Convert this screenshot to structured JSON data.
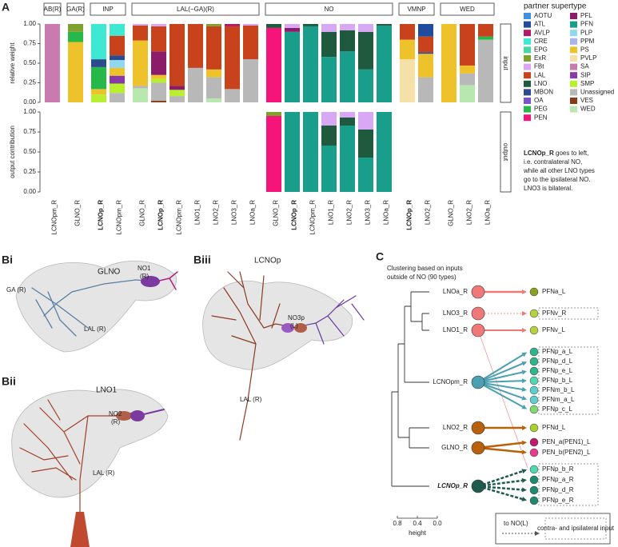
{
  "chart_data": [
    {
      "type": "bar",
      "stacked": true,
      "ylabel": "relative weight",
      "side_label": "input",
      "ylim": [
        0,
        1
      ],
      "yticks": [
        {
          "value": 0,
          "label": "0.00"
        },
        {
          "value": 0.25,
          "label": "0.25"
        },
        {
          "value": 0.5,
          "label": "0.50"
        },
        {
          "value": 0.75,
          "label": "0.75"
        },
        {
          "value": 1,
          "label": "1.00"
        }
      ],
      "groups": [
        {
          "label": "AB(R)",
          "count": 1
        },
        {
          "label": "GA(R)",
          "count": 1
        },
        {
          "label": "INP",
          "count": 2
        },
        {
          "label": "LAL(−GA)(R)",
          "count": 7
        },
        {
          "label": "NO",
          "count": 7
        },
        {
          "label": "VMNP",
          "count": 2
        },
        {
          "label": "WED",
          "count": 3
        }
      ],
      "categories": [
        "LCNOpm_R",
        "GLNO_R",
        "LCNOp_R",
        "LCNOpm_R",
        "GLNO_R",
        "LCNOp_R",
        "LCNOpm_R",
        "LNO1_R",
        "LNO2_R",
        "LNO3_R",
        "LNOa_R",
        "GLNO_R",
        "LCNOp_R",
        "LCNOpm_R",
        "LNO1_R",
        "LNO2_R",
        "LNO3_R",
        "LNOa_R",
        "LCNOp_R",
        "LNO2_R",
        "GLNO_R",
        "LNO2_R",
        "LNOa_R"
      ],
      "legend_title": "partner supertype",
      "note": {
        "bold": "LCNOp_R",
        "lines": [
          " goes to left,",
          "i.e. contralateral NO,",
          "while all other LNO types",
          "go to the ipsilateral NO.",
          "LNO3 is bilateral."
        ]
      },
      "series": [
        {
          "name": "AOTU",
          "color": "#3f8fe3",
          "values": [
            0,
            0,
            0,
            0,
            0,
            0,
            0,
            0,
            0,
            0,
            0,
            0,
            0,
            0,
            0,
            0,
            0,
            0,
            0,
            0,
            0,
            0,
            0
          ]
        },
        {
          "name": "ATL",
          "color": "#1f4c9e",
          "values": [
            0,
            0,
            0,
            0,
            0,
            0,
            0,
            0,
            0,
            0,
            0,
            0,
            0,
            0,
            0,
            0,
            0,
            0,
            0,
            0.16,
            0,
            0,
            0
          ]
        },
        {
          "name": "AVLP",
          "color": "#b0186a",
          "values": [
            0,
            0,
            0,
            0,
            0,
            0,
            0,
            0,
            0,
            0.03,
            0,
            0,
            0,
            0,
            0,
            0,
            0,
            0,
            0,
            0,
            0,
            0,
            0
          ]
        },
        {
          "name": "CRE",
          "color": "#3ee8d2",
          "values": [
            0,
            0,
            0.45,
            0.15,
            0,
            0,
            0,
            0,
            0,
            0,
            0,
            0,
            0,
            0,
            0,
            0,
            0,
            0,
            0,
            0,
            0,
            0,
            0
          ]
        },
        {
          "name": "EPG",
          "color": "#46d8a2",
          "values": [
            0,
            0,
            0,
            0,
            0,
            0,
            0,
            0,
            0,
            0,
            0,
            0,
            0,
            0,
            0,
            0,
            0,
            0,
            0,
            0,
            0,
            0,
            0
          ]
        },
        {
          "name": "ExR",
          "color": "#7ea32c",
          "values": [
            0,
            0.1,
            0,
            0,
            0,
            0,
            0,
            0,
            0.03,
            0,
            0,
            0,
            0,
            0,
            0,
            0,
            0,
            0,
            0,
            0,
            0,
            0,
            0
          ]
        },
        {
          "name": "FBt",
          "color": "#d9a8f5",
          "values": [
            0,
            0,
            0,
            0,
            0.02,
            0.03,
            0,
            0,
            0,
            0,
            0.02,
            0,
            0.05,
            0,
            0.1,
            0.08,
            0.1,
            0,
            0,
            0,
            0,
            0,
            0
          ]
        },
        {
          "name": "LAL",
          "color": "#c8421c",
          "values": [
            0,
            0,
            0,
            0.25,
            0.19,
            0.32,
            0.79,
            0.56,
            0.55,
            0.8,
            0.43,
            0,
            0,
            0,
            0,
            0,
            0,
            0,
            0.2,
            0.2,
            0,
            0.53,
            0.16
          ]
        },
        {
          "name": "LNO",
          "color": "#1f5a3e",
          "values": [
            0,
            0,
            0,
            0,
            0,
            0,
            0,
            0,
            0,
            0,
            0,
            0.05,
            0,
            0.03,
            0.32,
            0.27,
            0.48,
            0.02,
            0,
            0,
            0,
            0,
            0
          ]
        },
        {
          "name": "MBON",
          "color": "#2c4a8c",
          "values": [
            0,
            0,
            0.1,
            0.06,
            0,
            0,
            0,
            0,
            0,
            0,
            0,
            0,
            0,
            0,
            0,
            0,
            0,
            0,
            0,
            0.02,
            0,
            0,
            0
          ]
        },
        {
          "name": "OA",
          "color": "#7a55c8",
          "values": [
            0,
            0,
            0,
            0,
            0,
            0,
            0,
            0,
            0,
            0,
            0,
            0,
            0,
            0,
            0,
            0,
            0,
            0,
            0,
            0,
            0,
            0,
            0
          ]
        },
        {
          "name": "PEG",
          "color": "#27b84a",
          "values": [
            0,
            0.13,
            0.28,
            0,
            0,
            0,
            0,
            0,
            0,
            0,
            0,
            0,
            0,
            0,
            0,
            0,
            0,
            0,
            0,
            0,
            0,
            0,
            0.04
          ]
        },
        {
          "name": "PEN",
          "color": "#f5157a",
          "values": [
            0,
            0,
            0,
            0,
            0,
            0,
            0,
            0,
            0,
            0,
            0,
            0.95,
            0,
            0,
            0,
            0,
            0,
            0,
            0,
            0,
            0,
            0,
            0
          ]
        },
        {
          "name": "PFL",
          "color": "#8c1b6a",
          "values": [
            0,
            0,
            0,
            0,
            0,
            0.3,
            0.05,
            0,
            0,
            0,
            0,
            0,
            0.05,
            0,
            0,
            0,
            0,
            0,
            0,
            0,
            0,
            0,
            0
          ]
        },
        {
          "name": "PFN",
          "color": "#1a9e8c",
          "values": [
            0,
            0,
            0,
            0,
            0,
            0,
            0,
            0,
            0,
            0,
            0,
            0,
            0.9,
            0.97,
            0.58,
            0.65,
            0.42,
            0.98,
            0,
            0,
            0,
            0,
            0
          ]
        },
        {
          "name": "PLP",
          "color": "#8fd8f0",
          "values": [
            0,
            0,
            0,
            0.1,
            0,
            0,
            0,
            0,
            0,
            0,
            0,
            0,
            0,
            0,
            0,
            0,
            0,
            0,
            0,
            0,
            0,
            0,
            0
          ]
        },
        {
          "name": "PPM",
          "color": "#a9b4e8",
          "values": [
            0,
            0,
            0,
            0,
            0,
            0,
            0,
            0,
            0,
            0,
            0,
            0,
            0,
            0,
            0,
            0,
            0,
            0,
            0,
            0,
            0,
            0,
            0
          ]
        },
        {
          "name": "PS",
          "color": "#eec22a",
          "values": [
            0,
            0.77,
            0.07,
            0.1,
            0.58,
            0.05,
            0,
            0,
            0.1,
            0,
            0,
            0,
            0,
            0,
            0,
            0,
            0,
            0,
            0.25,
            0.3,
            1,
            0.1,
            0
          ]
        },
        {
          "name": "PVLP",
          "color": "#f5e0a8",
          "values": [
            0,
            0,
            0,
            0,
            0,
            0,
            0,
            0,
            0,
            0,
            0,
            0,
            0,
            0,
            0,
            0,
            0,
            0,
            0.55,
            0,
            0,
            0,
            0
          ]
        },
        {
          "name": "SA",
          "color": "#c97bb0",
          "values": [
            1,
            0,
            0,
            0,
            0,
            0,
            0,
            0,
            0,
            0,
            0,
            0,
            0,
            0,
            0,
            0,
            0,
            0,
            0,
            0,
            0,
            0,
            0
          ]
        },
        {
          "name": "SIP",
          "color": "#8a3aa6",
          "values": [
            0,
            0,
            0,
            0.1,
            0,
            0,
            0,
            0,
            0,
            0,
            0,
            0,
            0,
            0,
            0,
            0,
            0,
            0,
            0,
            0,
            0,
            0,
            0
          ]
        },
        {
          "name": "SMP",
          "color": "#b8f030",
          "values": [
            0,
            0,
            0.1,
            0.12,
            0,
            0.05,
            0.08,
            0,
            0,
            0,
            0,
            0,
            0,
            0,
            0,
            0,
            0,
            0,
            0,
            0,
            0,
            0,
            0
          ]
        },
        {
          "name": "Unassigned",
          "color": "#b8b8b8",
          "values": [
            0,
            0,
            0,
            0.12,
            0.03,
            0.23,
            0.08,
            0.44,
            0.27,
            0.17,
            0.55,
            0,
            0,
            0,
            0,
            0,
            0,
            0,
            0,
            0.32,
            0,
            0.15,
            0.8
          ]
        },
        {
          "name": "VES",
          "color": "#8b3a1a",
          "values": [
            0,
            0,
            0,
            0,
            0,
            0.02,
            0,
            0,
            0,
            0,
            0,
            0,
            0,
            0,
            0,
            0,
            0,
            0,
            0,
            0,
            0,
            0,
            0
          ]
        },
        {
          "name": "WED",
          "color": "#b8e8b0",
          "values": [
            0,
            0,
            0,
            0,
            0.18,
            0,
            0,
            0,
            0.05,
            0,
            0,
            0,
            0,
            0,
            0,
            0,
            0,
            0,
            0,
            0,
            0,
            0.22,
            0
          ]
        }
      ]
    },
    {
      "type": "bar",
      "stacked": true,
      "ylabel": "output contribution",
      "side_label": "output",
      "ylim": [
        0,
        1
      ],
      "yticks": [
        {
          "value": 0,
          "label": "0.00"
        },
        {
          "value": 0.25,
          "label": "0.25"
        },
        {
          "value": 0.5,
          "label": "0.50"
        },
        {
          "value": 0.75,
          "label": "0.75"
        },
        {
          "value": 1,
          "label": "1.00"
        }
      ],
      "series": [
        {
          "name": "ExR",
          "color": "#7ea32c",
          "values": [
            null,
            null,
            null,
            null,
            null,
            null,
            null,
            null,
            null,
            null,
            null,
            0.05,
            0,
            0,
            0,
            0,
            0,
            0,
            null,
            null,
            null,
            null,
            null
          ]
        },
        {
          "name": "FBt",
          "color": "#d9a8f5",
          "values": [
            null,
            null,
            null,
            null,
            null,
            null,
            null,
            null,
            null,
            null,
            null,
            0,
            0,
            0,
            0.17,
            0.07,
            0.22,
            0,
            null,
            null,
            null,
            null,
            null
          ]
        },
        {
          "name": "LNO",
          "color": "#1f5a3e",
          "values": [
            null,
            null,
            null,
            null,
            null,
            null,
            null,
            null,
            null,
            null,
            null,
            0,
            0,
            0,
            0.25,
            0.1,
            0.35,
            0,
            null,
            null,
            null,
            null,
            null
          ]
        },
        {
          "name": "PEN",
          "color": "#f5157a",
          "values": [
            null,
            null,
            null,
            null,
            null,
            null,
            null,
            null,
            null,
            null,
            null,
            0.95,
            0,
            0,
            0,
            0,
            0,
            0,
            null,
            null,
            null,
            null,
            null
          ]
        },
        {
          "name": "PFN",
          "color": "#1a9e8c",
          "values": [
            null,
            null,
            null,
            null,
            null,
            null,
            null,
            null,
            null,
            null,
            null,
            0,
            1,
            1,
            0.58,
            0.83,
            0.43,
            1,
            null,
            null,
            null,
            null,
            null
          ]
        }
      ]
    }
  ],
  "panel_a_label": "A",
  "panel_b": [
    {
      "label": "Bi",
      "title": "GLNO",
      "annotations": [
        [
          "GA (R)"
        ],
        [
          "NO1",
          "(R)"
        ],
        [
          "LAL (R)"
        ]
      ]
    },
    {
      "label": "Bii",
      "title": "LNO1",
      "annotations": [
        [
          "NO2",
          "(R)"
        ],
        [
          "LAL (R)"
        ]
      ]
    },
    {
      "label": "Biii",
      "title": "LCNOp",
      "annotations": [
        [
          "NO3p",
          "(L)"
        ],
        [
          "LAL (R)"
        ]
      ]
    }
  ],
  "panel_c": {
    "label": "C",
    "title_lines": [
      "Clustering based on inputs",
      "outside of NO (90 types)"
    ],
    "clusters": [
      {
        "name": "LNOa_R",
        "color": "#f07878",
        "targets": [
          {
            "name": "PFNa_L",
            "color": "#8aa020"
          }
        ]
      },
      {
        "name": "LNO3_R",
        "color": "#f07878",
        "targets": [
          {
            "name": "PFNv_R",
            "color": "#b8d040"
          }
        ]
      },
      {
        "name": "LNO1_R",
        "color": "#f07878",
        "targets": [
          {
            "name": "PFNv_L",
            "color": "#b8d040"
          }
        ]
      },
      {
        "name": "LCNOpm_R",
        "color": "#4aa0b0",
        "targets": [
          {
            "name": "PFNp_a_L",
            "color": "#2eb58a"
          },
          {
            "name": "PFNp_d_L",
            "color": "#2eb58a"
          },
          {
            "name": "PFNp_e_L",
            "color": "#2eb58a"
          },
          {
            "name": "PFNp_b_L",
            "color": "#50d8b0"
          },
          {
            "name": "PFNm_b_L",
            "color": "#5ecfcf"
          },
          {
            "name": "PFNm_a_L",
            "color": "#5ecfcf"
          },
          {
            "name": "PFNp_c_L",
            "color": "#7fd870"
          }
        ]
      },
      {
        "name": "LNO2_R",
        "color": "#b8600a",
        "targets": [
          {
            "name": "PFNd_L",
            "color": "#a8d030"
          }
        ]
      },
      {
        "name": "GLNO_R",
        "color": "#b8600a",
        "targets": [
          {
            "name": "PEN_a(PEN1)_L",
            "color": "#c0186a"
          },
          {
            "name": "PEN_b(PEN2)_L",
            "color": "#e83c8c"
          }
        ]
      },
      {
        "name": "LCNOp_R",
        "color": "#1f5a50",
        "targets": [
          {
            "name": "PFNp_b_R",
            "color": "#50d8b0"
          },
          {
            "name": "PFNp_a_R",
            "color": "#1f8a70"
          },
          {
            "name": "PFNp_d_R",
            "color": "#1f8a70"
          },
          {
            "name": "PFNp_e_R",
            "color": "#1f8a70"
          }
        ]
      }
    ],
    "axis": {
      "label": "height",
      "ticks": [
        0.8,
        0.4,
        {
          "value": 0,
          "label": "0.0"
        }
      ]
    },
    "legend": {
      "arrow": "to NO(L)",
      "box": "contra- and ipsilateral input"
    }
  }
}
